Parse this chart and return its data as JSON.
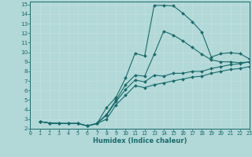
{
  "xlabel": "Humidex (Indice chaleur)",
  "xlim": [
    0,
    23
  ],
  "ylim": [
    2,
    15.3
  ],
  "xticks": [
    0,
    1,
    2,
    3,
    4,
    5,
    6,
    7,
    8,
    9,
    10,
    11,
    12,
    13,
    14,
    15,
    16,
    17,
    18,
    19,
    20,
    21,
    22,
    23
  ],
  "yticks": [
    2,
    3,
    4,
    5,
    6,
    7,
    8,
    9,
    10,
    11,
    12,
    13,
    14,
    15
  ],
  "bg_color": "#b2d8d8",
  "grid_color": "#c5e0e0",
  "line_color": "#1a6b6b",
  "curves": [
    {
      "x": [
        1,
        2,
        3,
        4,
        5,
        6,
        7,
        8,
        9,
        10,
        11,
        12,
        13,
        14,
        15,
        16,
        17,
        18,
        19,
        20,
        21,
        22,
        23
      ],
      "y": [
        2.75,
        2.6,
        2.55,
        2.55,
        2.55,
        2.3,
        2.55,
        4.2,
        5.3,
        7.3,
        9.9,
        9.6,
        14.9,
        14.9,
        14.85,
        14.1,
        13.2,
        12.1,
        9.5,
        9.85,
        9.95,
        9.85,
        9.3
      ]
    },
    {
      "x": [
        1,
        2,
        3,
        4,
        5,
        6,
        7,
        8,
        9,
        10,
        11,
        12,
        13,
        14,
        15,
        16,
        17,
        18,
        19,
        20,
        21,
        22,
        23
      ],
      "y": [
        2.75,
        2.6,
        2.55,
        2.55,
        2.55,
        2.3,
        2.55,
        3.5,
        5.0,
        6.6,
        7.6,
        7.5,
        9.8,
        12.2,
        11.8,
        11.2,
        10.5,
        9.8,
        9.2,
        9.0,
        9.0,
        8.9,
        9.0
      ]
    },
    {
      "x": [
        1,
        2,
        3,
        4,
        5,
        6,
        7,
        8,
        9,
        10,
        11,
        12,
        13,
        14,
        15,
        16,
        17,
        18,
        19,
        20,
        21,
        22,
        23
      ],
      "y": [
        2.75,
        2.6,
        2.55,
        2.55,
        2.55,
        2.3,
        2.55,
        3.4,
        4.85,
        6.1,
        7.1,
        6.9,
        7.6,
        7.5,
        7.8,
        7.8,
        8.0,
        8.0,
        8.3,
        8.5,
        8.7,
        8.8,
        9.0
      ]
    },
    {
      "x": [
        1,
        2,
        3,
        4,
        5,
        6,
        7,
        8,
        9,
        10,
        11,
        12,
        13,
        14,
        15,
        16,
        17,
        18,
        19,
        20,
        21,
        22,
        23
      ],
      "y": [
        2.75,
        2.6,
        2.55,
        2.55,
        2.55,
        2.3,
        2.55,
        3.0,
        4.5,
        5.5,
        6.5,
        6.3,
        6.6,
        6.8,
        7.0,
        7.2,
        7.4,
        7.5,
        7.8,
        8.0,
        8.2,
        8.3,
        8.5
      ]
    }
  ]
}
